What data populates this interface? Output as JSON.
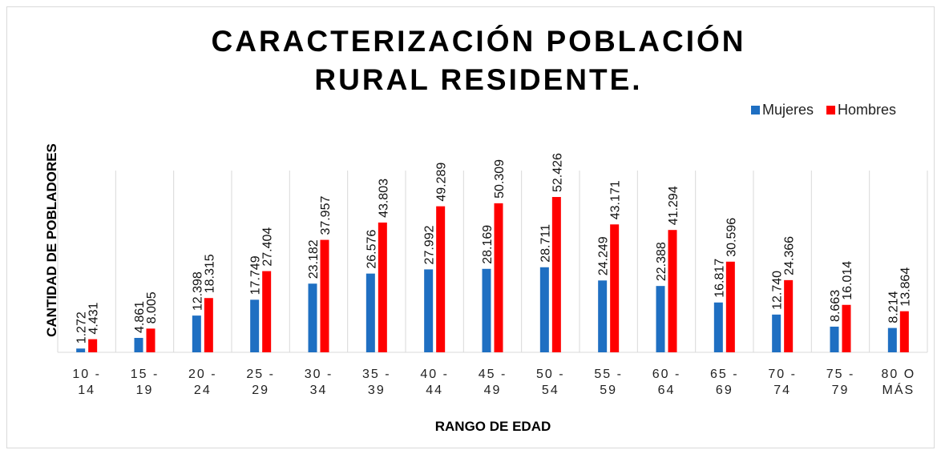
{
  "chart_data": {
    "type": "bar",
    "title": "CARACTERIZACIÓN POBLACIÓN RURAL RESIDENTE.",
    "x_label": "RANGO DE EDAD",
    "y_label": "CANTIDAD DE POBLADORES",
    "categories": [
      "10 - 14",
      "15 - 19",
      "20 - 24",
      "25 - 29",
      "30 - 34",
      "35 - 39",
      "40 - 44",
      "45 - 49",
      "50 - 54",
      "55 - 59",
      "60 - 64",
      "65 - 69",
      "70 - 74",
      "75 - 79",
      "80 O MÁS"
    ],
    "series": [
      {
        "name": "Mujeres",
        "color": "#1f6fc2",
        "values": [
          1272,
          4861,
          12398,
          17749,
          23182,
          26576,
          27992,
          28169,
          28711,
          24249,
          22388,
          16817,
          12740,
          8663,
          8214
        ],
        "value_labels": [
          "1.272",
          "4.861",
          "12.398",
          "17.749",
          "23.182",
          "26.576",
          "27.992",
          "28.169",
          "28.711",
          "24.249",
          "22.388",
          "16.817",
          "12.740",
          "8.663",
          "8.214"
        ]
      },
      {
        "name": "Hombres",
        "color": "#ff0000",
        "values": [
          4431,
          8005,
          18315,
          27404,
          37957,
          43803,
          49289,
          50309,
          52426,
          43171,
          41294,
          30596,
          24366,
          16014,
          13864
        ],
        "value_labels": [
          "4.431",
          "8.005",
          "18.315",
          "27.404",
          "37.957",
          "43.803",
          "49.289",
          "50.309",
          "52.426",
          "43.171",
          "41.294",
          "30.596",
          "24.366",
          "16.014",
          "13.864"
        ]
      }
    ],
    "ylim": [
      0,
      60000
    ],
    "grid": true,
    "legend": "top-right"
  }
}
